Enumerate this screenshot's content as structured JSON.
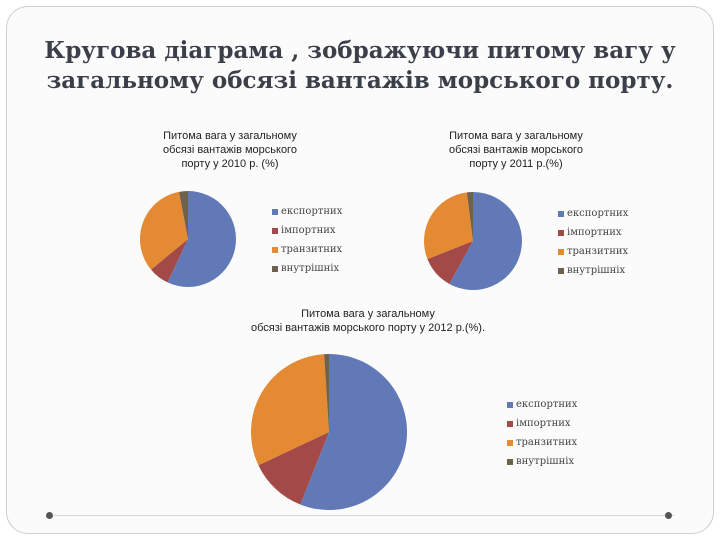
{
  "slide": {
    "title_line1": "Кругова діаграма , зображуючи питому вагу у",
    "title_line2": "загальному обсязі вантажів морського порту."
  },
  "colors": {
    "series": [
      "#6279b8",
      "#a34a48",
      "#e48a33",
      "#6f6150"
    ]
  },
  "chart_data": [
    {
      "type": "pie",
      "title_lines": [
        "Питома вага у загальному",
        "обсязі вантажів морського",
        "порту у 2010 р. (%)"
      ],
      "labels": [
        "експортних",
        "імпортних",
        "транзитних",
        "внутрішніх"
      ],
      "values": [
        57,
        7,
        33,
        3
      ],
      "legend_position": "right"
    },
    {
      "type": "pie",
      "title_lines": [
        "Питома вага у загальному",
        "обсязі вантажів морського",
        "порту у 2011 р.(%)"
      ],
      "labels": [
        "експортних",
        "імпортних",
        "транзитних",
        "внутрішніх"
      ],
      "values": [
        58,
        11,
        29,
        2
      ],
      "legend_position": "right"
    },
    {
      "type": "pie",
      "title_lines": [
        "Питома вага у загальному",
        "обсязі вантажів морського порту у 2012 р.(%)."
      ],
      "labels": [
        "експортних",
        "імпортних",
        "транзитних",
        "внутрішніх"
      ],
      "values": [
        56,
        12,
        31,
        1
      ],
      "legend_position": "right"
    }
  ]
}
